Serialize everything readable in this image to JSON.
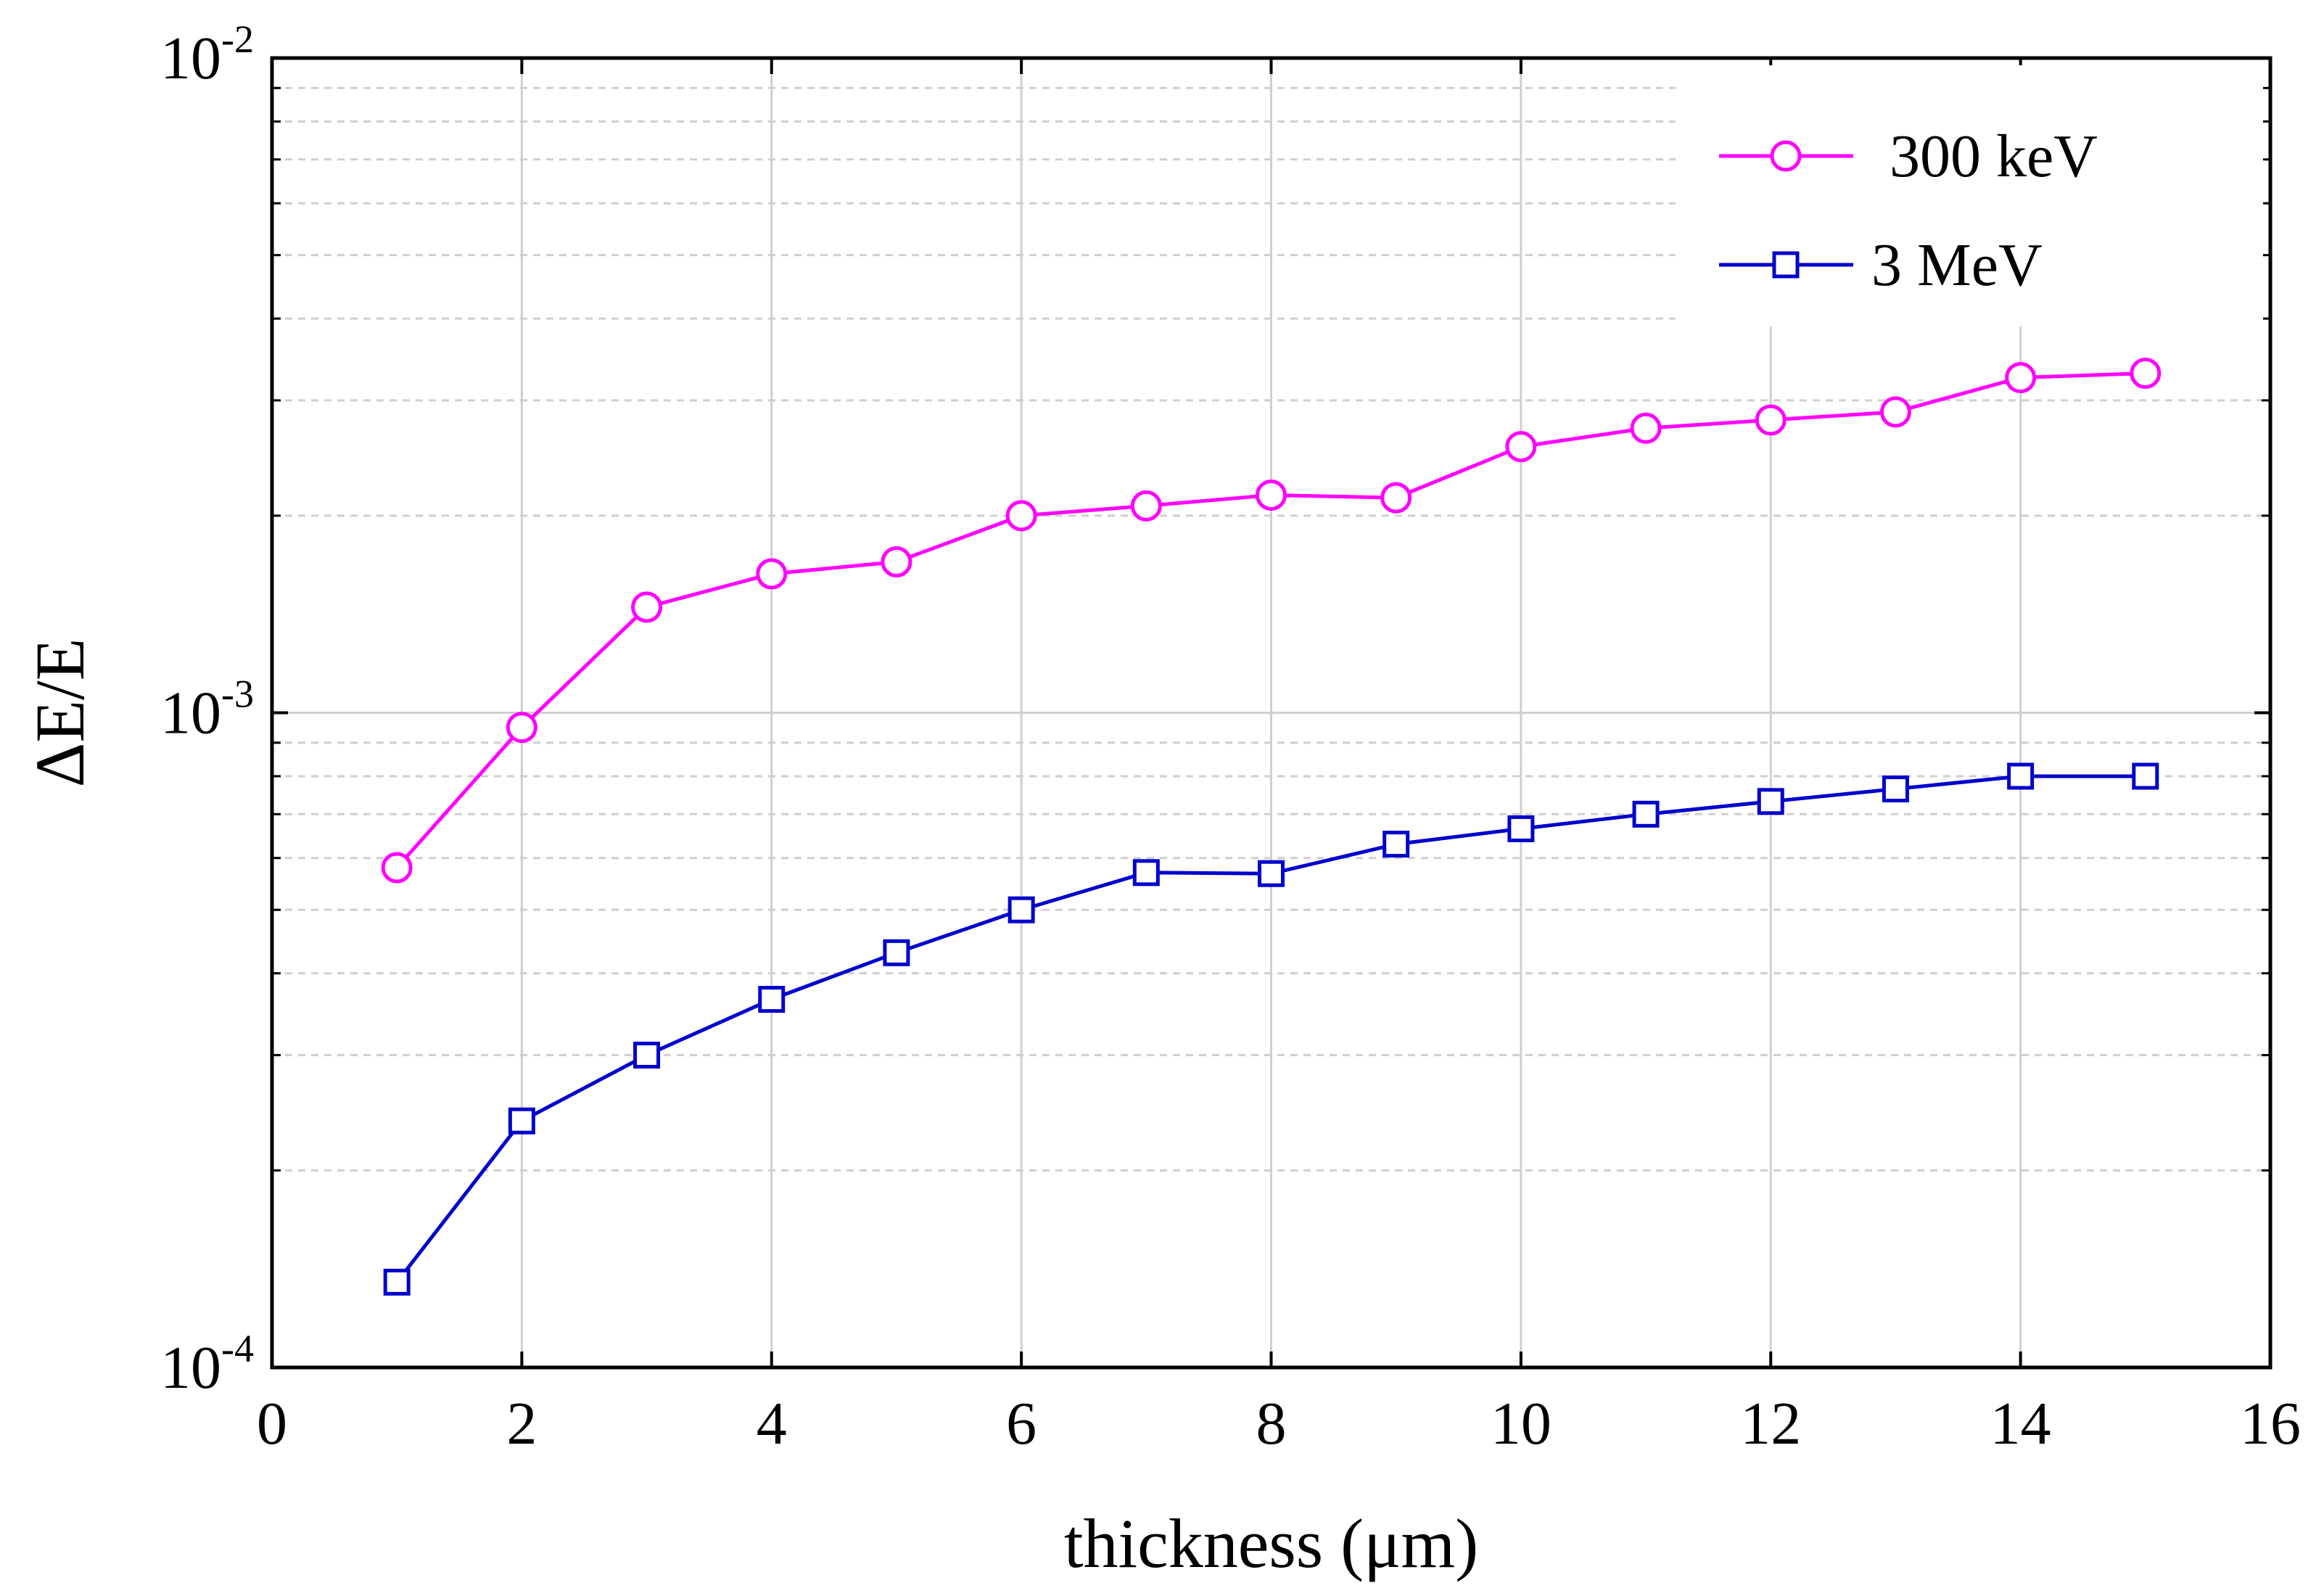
{
  "chart_data": {
    "type": "line",
    "xlabel": "thickness (μm)",
    "ylabel": "ΔE/E",
    "yscale": "log",
    "xlim": [
      0,
      16
    ],
    "ylim": [
      0.0001,
      0.01
    ],
    "x_ticks": [
      0,
      2,
      4,
      6,
      8,
      10,
      12,
      14,
      16
    ],
    "y_ticks": [
      {
        "value": 0.0001,
        "base": "10",
        "exp": "-4"
      },
      {
        "value": 0.001,
        "base": "10",
        "exp": "-3"
      },
      {
        "value": 0.01,
        "base": "10",
        "exp": "-2"
      }
    ],
    "grid": true,
    "legend_position": "top-right",
    "series": [
      {
        "name": "300 keV",
        "color": "#ff00ff",
        "marker": "circle",
        "x": [
          1,
          2,
          3,
          4,
          5,
          6,
          7,
          8,
          9,
          10,
          11,
          12,
          13,
          14,
          15
        ],
        "values": [
          0.00058,
          0.00095,
          0.00145,
          0.00163,
          0.0017,
          0.002,
          0.00207,
          0.00215,
          0.00213,
          0.00255,
          0.00272,
          0.0028,
          0.00288,
          0.00325,
          0.0033
        ]
      },
      {
        "name": "3 MeV",
        "color": "#0000cc",
        "marker": "square",
        "x": [
          1,
          2,
          3,
          4,
          5,
          6,
          7,
          8,
          9,
          10,
          11,
          12,
          13,
          14,
          15
        ],
        "values": [
          0.000135,
          0.000238,
          0.0003,
          0.000365,
          0.00043,
          0.0005,
          0.00057,
          0.000568,
          0.00063,
          0.000665,
          0.0007,
          0.000732,
          0.000765,
          0.0008,
          0.0008
        ]
      }
    ]
  }
}
